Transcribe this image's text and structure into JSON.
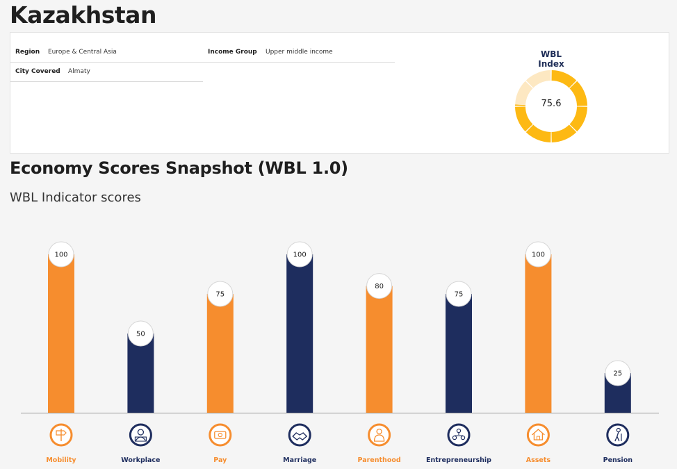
{
  "header": {
    "title": "Kazakhstan"
  },
  "info": {
    "region_label": "Region",
    "region_value": "Europe & Central Asia",
    "income_label": "Income Group",
    "income_value": "Upper middle income",
    "city_label": "City Covered",
    "city_value": "Almaty"
  },
  "wbl_index": {
    "title": "WBL Index",
    "value": "75.6",
    "score": 75.6,
    "segments": 8,
    "colors": {
      "filled": "#fdb913",
      "empty": "#fde8c2"
    }
  },
  "section": {
    "title": "Economy Scores Snapshot (WBL 1.0)",
    "subtitle": "WBL Indicator scores"
  },
  "chart_data": {
    "type": "bar",
    "categories": [
      "Mobility",
      "Workplace",
      "Pay",
      "Marriage",
      "Parenthood",
      "Entrepreneurship",
      "Assets",
      "Pension"
    ],
    "values": [
      100,
      50,
      75,
      100,
      80,
      75,
      100,
      25
    ],
    "colors": [
      "#f68d2e",
      "#1e2d5e",
      "#f68d2e",
      "#1e2d5e",
      "#f68d2e",
      "#1e2d5e",
      "#f68d2e",
      "#1e2d5e"
    ],
    "icons": [
      "mobility-icon",
      "workplace-icon",
      "pay-icon",
      "marriage-icon",
      "parenthood-icon",
      "entrepreneurship-icon",
      "assets-icon",
      "pension-icon"
    ],
    "title": "",
    "xlabel": "",
    "ylabel": "",
    "ylim": [
      0,
      100
    ],
    "grid": false,
    "legend": "none"
  }
}
